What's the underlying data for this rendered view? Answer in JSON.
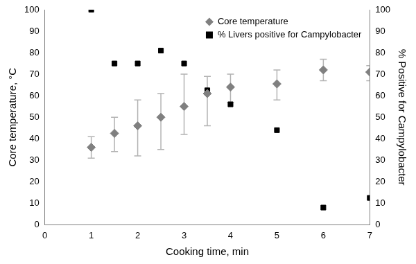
{
  "chart_data": {
    "type": "scatter",
    "x": [
      1,
      1.5,
      2,
      2.5,
      3,
      3.5,
      4,
      5,
      6,
      7
    ],
    "series": [
      {
        "name": "Core temperature",
        "color": "#808080",
        "marker": "diamond",
        "values": [
          36,
          42.5,
          46,
          50,
          55,
          61,
          64,
          65.5,
          72,
          71
        ],
        "error_low": [
          31,
          34,
          32,
          35,
          42,
          46,
          57,
          58,
          67,
          67
        ],
        "error_high": [
          41,
          50,
          58,
          61,
          70,
          69,
          70,
          72,
          77,
          74
        ]
      },
      {
        "name": "% Livers positive for Campylobacter",
        "color": "#000000",
        "marker": "square",
        "axis": "y2",
        "values": [
          100,
          75,
          75,
          81,
          75,
          62.5,
          56,
          44,
          8,
          12.5
        ]
      }
    ],
    "x_label": "Cooking time, min",
    "y_label": "Core temperature, °C",
    "y2_label": "% Positive for Campylobacter",
    "xlim": [
      0,
      7
    ],
    "xticks": [
      0,
      1,
      2,
      3,
      4,
      5,
      6,
      7
    ],
    "ylim": [
      0,
      100
    ],
    "yticks": [
      0,
      10,
      20,
      30,
      40,
      50,
      60,
      70,
      80,
      90,
      100
    ],
    "y2lim": [
      0,
      100
    ],
    "y2ticks": [
      0,
      10,
      20,
      30,
      40,
      50,
      60,
      70,
      80,
      90,
      100
    ],
    "grid": false,
    "legend": "top-right"
  }
}
